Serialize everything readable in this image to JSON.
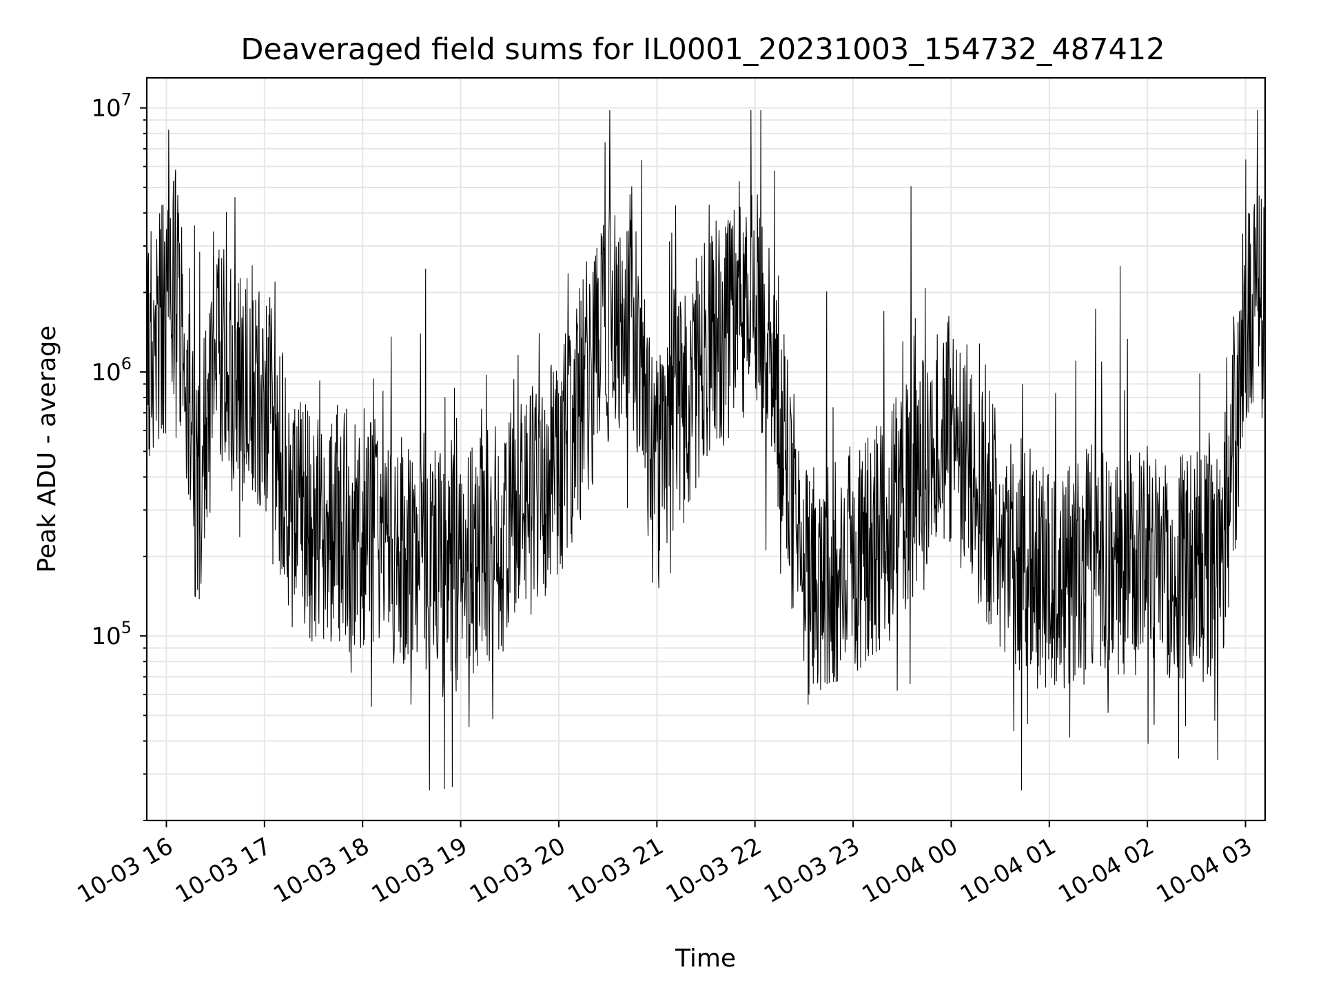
{
  "chart_data": {
    "type": "line",
    "title": "Deaveraged field sums for IL0001_20231003_154732_487412",
    "xlabel": "Time",
    "ylabel": "Peak ADU - average",
    "yscale": "log",
    "ylim": [
      20000,
      13000000
    ],
    "xlim": [
      "2023-10-03 15:48",
      "2023-10-04 03:12"
    ],
    "grid": true,
    "legend": "none",
    "line_color": "#000000",
    "x_ticks": [
      "10-03 16",
      "10-03 17",
      "10-03 18",
      "10-03 19",
      "10-03 20",
      "10-03 21",
      "10-03 22",
      "10-03 23",
      "10-04 00",
      "10-04 01",
      "10-04 02",
      "10-04 03"
    ],
    "y_ticks": [
      {
        "base": "10",
        "exp": "5",
        "value": 100000
      },
      {
        "base": "10",
        "exp": "6",
        "value": 1000000
      },
      {
        "base": "10",
        "exp": "7",
        "value": 10000000
      }
    ],
    "series": [
      {
        "x": [
          "2023-10-03 15:48",
          "2023-10-03 16:00",
          "2023-10-03 16:06",
          "2023-10-03 16:12",
          "2023-10-03 16:18",
          "2023-10-03 16:30",
          "2023-10-03 16:45",
          "2023-10-03 17:00",
          "2023-10-03 17:15",
          "2023-10-03 17:30",
          "2023-10-03 17:45",
          "2023-10-03 18:00",
          "2023-10-03 18:30",
          "2023-10-03 19:00",
          "2023-10-03 19:30",
          "2023-10-03 20:00",
          "2023-10-03 20:30",
          "2023-10-03 20:45",
          "2023-10-03 21:00",
          "2023-10-03 21:30",
          "2023-10-03 22:00",
          "2023-10-03 22:15",
          "2023-10-03 22:30",
          "2023-10-03 23:00",
          "2023-10-03 23:30",
          "2023-10-04 00:00",
          "2023-10-04 00:30",
          "2023-10-04 01:00",
          "2023-10-04 01:30",
          "2023-10-04 02:00",
          "2023-10-04 02:30",
          "2023-10-04 02:48",
          "2023-10-04 03:00",
          "2023-10-04 03:12"
        ],
        "values": [
          1300000,
          1600000,
          2500000,
          1000000,
          300000,
          1200000,
          900000,
          800000,
          350000,
          250000,
          270000,
          250000,
          200000,
          180000,
          250000,
          450000,
          1500000,
          1800000,
          400000,
          1200000,
          2000000,
          800000,
          150000,
          200000,
          300000,
          600000,
          250000,
          150000,
          200000,
          200000,
          180000,
          200000,
          1800000,
          1600000
        ]
      }
    ]
  }
}
